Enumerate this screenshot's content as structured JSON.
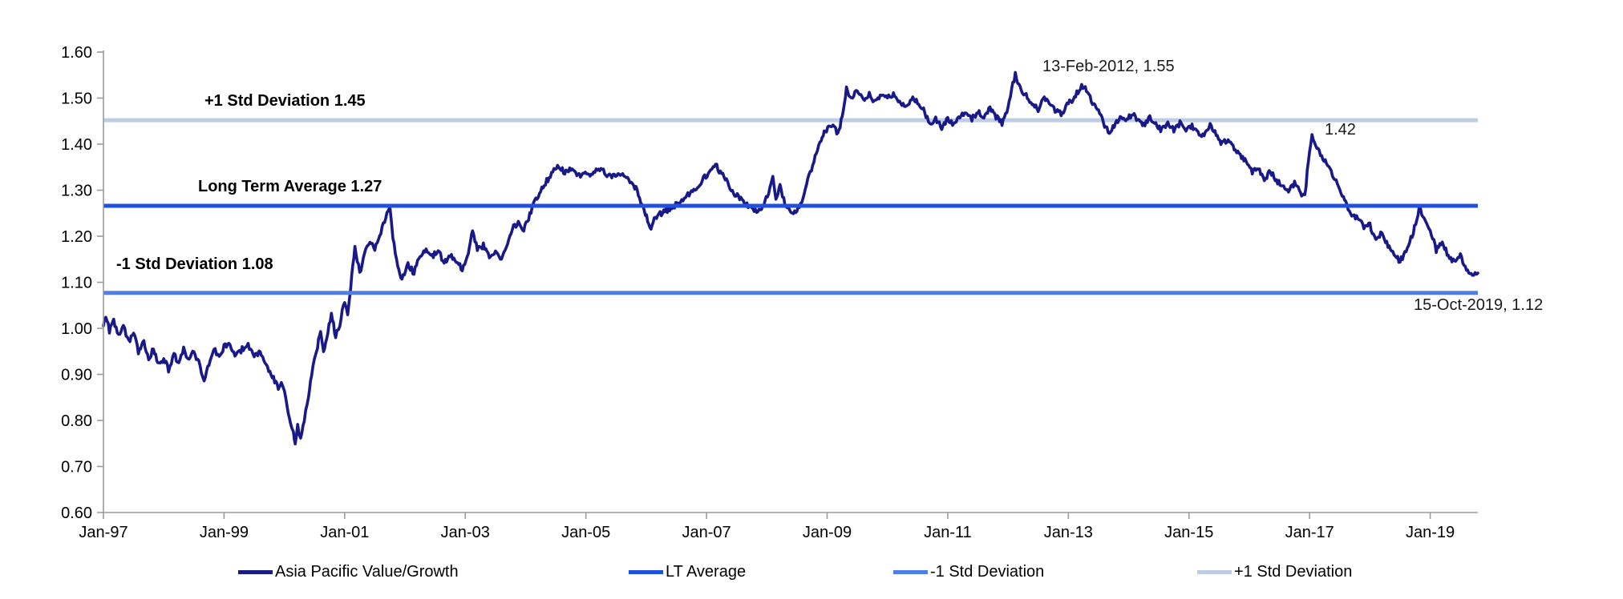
{
  "chart_data": {
    "type": "line",
    "title": "",
    "x_axis": {
      "tick_labels": [
        "Jan-97",
        "Jan-99",
        "Jan-01",
        "Jan-03",
        "Jan-05",
        "Jan-07",
        "Jan-09",
        "Jan-11",
        "Jan-13",
        "Jan-15",
        "Jan-17",
        "Jan-19"
      ],
      "tick_years": [
        0,
        2,
        4,
        6,
        8,
        10,
        12,
        14,
        16,
        18,
        20,
        22
      ],
      "range_years": [
        0,
        22.79
      ]
    },
    "y_axis": {
      "tick_labels": [
        "1.60",
        "1.50",
        "1.40",
        "1.30",
        "1.20",
        "1.10",
        "1.00",
        "0.90",
        "0.80",
        "0.70",
        "0.60"
      ],
      "min": 0.6,
      "max": 1.6,
      "step": 0.1
    },
    "series": [
      {
        "name": "Asia Pacific Value/Growth",
        "color": "#191987",
        "points": [
          [
            0,
            1.005
          ],
          [
            0.04,
            1.03
          ],
          [
            0.1,
            0.995
          ],
          [
            0.17,
            1.015
          ],
          [
            0.25,
            0.985
          ],
          [
            0.33,
            1.005
          ],
          [
            0.42,
            0.97
          ],
          [
            0.5,
            0.99
          ],
          [
            0.58,
            0.95
          ],
          [
            0.67,
            0.97
          ],
          [
            0.75,
            0.935
          ],
          [
            0.83,
            0.955
          ],
          [
            0.92,
            0.92
          ],
          [
            1,
            0.935
          ],
          [
            1.08,
            0.91
          ],
          [
            1.17,
            0.945
          ],
          [
            1.25,
            0.92
          ],
          [
            1.33,
            0.955
          ],
          [
            1.42,
            0.93
          ],
          [
            1.5,
            0.95
          ],
          [
            1.58,
            0.925
          ],
          [
            1.67,
            0.89
          ],
          [
            1.75,
            0.92
          ],
          [
            1.83,
            0.955
          ],
          [
            1.92,
            0.94
          ],
          [
            2,
            0.96
          ],
          [
            2.1,
            0.965
          ],
          [
            2.2,
            0.94
          ],
          [
            2.3,
            0.955
          ],
          [
            2.4,
            0.965
          ],
          [
            2.5,
            0.94
          ],
          [
            2.6,
            0.95
          ],
          [
            2.7,
            0.92
          ],
          [
            2.8,
            0.895
          ],
          [
            2.9,
            0.87
          ],
          [
            2.95,
            0.885
          ],
          [
            3,
            0.86
          ],
          [
            3.05,
            0.825
          ],
          [
            3.1,
            0.8
          ],
          [
            3.15,
            0.775
          ],
          [
            3.18,
            0.745
          ],
          [
            3.22,
            0.79
          ],
          [
            3.27,
            0.76
          ],
          [
            3.33,
            0.8
          ],
          [
            3.4,
            0.85
          ],
          [
            3.45,
            0.9
          ],
          [
            3.5,
            0.935
          ],
          [
            3.55,
            0.96
          ],
          [
            3.6,
            0.995
          ],
          [
            3.65,
            0.955
          ],
          [
            3.7,
            0.975
          ],
          [
            3.78,
            1.035
          ],
          [
            3.85,
            0.98
          ],
          [
            3.92,
            1.01
          ],
          [
            4,
            1.06
          ],
          [
            4.05,
            1.03
          ],
          [
            4.1,
            1.09
          ],
          [
            4.17,
            1.18
          ],
          [
            4.25,
            1.12
          ],
          [
            4.33,
            1.16
          ],
          [
            4.42,
            1.19
          ],
          [
            4.5,
            1.17
          ],
          [
            4.6,
            1.21
          ],
          [
            4.7,
            1.245
          ],
          [
            4.75,
            1.26
          ],
          [
            4.8,
            1.2
          ],
          [
            4.88,
            1.13
          ],
          [
            4.95,
            1.105
          ],
          [
            5.05,
            1.14
          ],
          [
            5.15,
            1.12
          ],
          [
            5.25,
            1.16
          ],
          [
            5.35,
            1.17
          ],
          [
            5.45,
            1.155
          ],
          [
            5.55,
            1.17
          ],
          [
            5.65,
            1.14
          ],
          [
            5.75,
            1.16
          ],
          [
            5.85,
            1.145
          ],
          [
            5.95,
            1.13
          ],
          [
            6.05,
            1.16
          ],
          [
            6.12,
            1.215
          ],
          [
            6.2,
            1.17
          ],
          [
            6.3,
            1.18
          ],
          [
            6.4,
            1.155
          ],
          [
            6.5,
            1.165
          ],
          [
            6.6,
            1.15
          ],
          [
            6.7,
            1.18
          ],
          [
            6.8,
            1.22
          ],
          [
            6.9,
            1.23
          ],
          [
            6.95,
            1.21
          ],
          [
            7.05,
            1.24
          ],
          [
            7.15,
            1.275
          ],
          [
            7.25,
            1.3
          ],
          [
            7.35,
            1.32
          ],
          [
            7.45,
            1.34
          ],
          [
            7.55,
            1.35
          ],
          [
            7.65,
            1.34
          ],
          [
            7.75,
            1.345
          ],
          [
            7.85,
            1.33
          ],
          [
            7.95,
            1.335
          ],
          [
            8.05,
            1.335
          ],
          [
            8.15,
            1.34
          ],
          [
            8.25,
            1.345
          ],
          [
            8.35,
            1.335
          ],
          [
            8.45,
            1.33
          ],
          [
            8.55,
            1.335
          ],
          [
            8.65,
            1.33
          ],
          [
            8.75,
            1.32
          ],
          [
            8.85,
            1.3
          ],
          [
            8.95,
            1.26
          ],
          [
            9.08,
            1.217
          ],
          [
            9.15,
            1.24
          ],
          [
            9.25,
            1.25
          ],
          [
            9.35,
            1.257
          ],
          [
            9.45,
            1.265
          ],
          [
            9.55,
            1.272
          ],
          [
            9.65,
            1.285
          ],
          [
            9.75,
            1.295
          ],
          [
            9.85,
            1.31
          ],
          [
            9.95,
            1.325
          ],
          [
            10.05,
            1.34
          ],
          [
            10.15,
            1.355
          ],
          [
            10.25,
            1.335
          ],
          [
            10.35,
            1.315
          ],
          [
            10.45,
            1.295
          ],
          [
            10.55,
            1.285
          ],
          [
            10.65,
            1.27
          ],
          [
            10.75,
            1.258
          ],
          [
            10.85,
            1.255
          ],
          [
            10.95,
            1.268
          ],
          [
            11.05,
            1.305
          ],
          [
            11.1,
            1.33
          ],
          [
            11.15,
            1.275
          ],
          [
            11.22,
            1.31
          ],
          [
            11.3,
            1.27
          ],
          [
            11.4,
            1.255
          ],
          [
            11.5,
            1.253
          ],
          [
            11.6,
            1.28
          ],
          [
            11.7,
            1.33
          ],
          [
            11.8,
            1.37
          ],
          [
            11.9,
            1.41
          ],
          [
            11.97,
            1.43
          ],
          [
            12.05,
            1.435
          ],
          [
            12.12,
            1.44
          ],
          [
            12.18,
            1.42
          ],
          [
            12.25,
            1.46
          ],
          [
            12.32,
            1.52
          ],
          [
            12.4,
            1.5
          ],
          [
            12.5,
            1.515
          ],
          [
            12.6,
            1.495
          ],
          [
            12.7,
            1.51
          ],
          [
            12.8,
            1.49
          ],
          [
            12.9,
            1.505
          ],
          [
            13,
            1.5
          ],
          [
            13.1,
            1.51
          ],
          [
            13.2,
            1.49
          ],
          [
            13.3,
            1.48
          ],
          [
            13.4,
            1.5
          ],
          [
            13.5,
            1.49
          ],
          [
            13.6,
            1.475
          ],
          [
            13.7,
            1.445
          ],
          [
            13.8,
            1.455
          ],
          [
            13.9,
            1.435
          ],
          [
            14,
            1.455
          ],
          [
            14.1,
            1.44
          ],
          [
            14.2,
            1.46
          ],
          [
            14.3,
            1.47
          ],
          [
            14.4,
            1.455
          ],
          [
            14.5,
            1.47
          ],
          [
            14.6,
            1.455
          ],
          [
            14.7,
            1.48
          ],
          [
            14.8,
            1.46
          ],
          [
            14.9,
            1.445
          ],
          [
            15,
            1.48
          ],
          [
            15.08,
            1.53
          ],
          [
            15.12,
            1.55
          ],
          [
            15.2,
            1.52
          ],
          [
            15.3,
            1.505
          ],
          [
            15.4,
            1.49
          ],
          [
            15.5,
            1.475
          ],
          [
            15.6,
            1.5
          ],
          [
            15.7,
            1.49
          ],
          [
            15.8,
            1.47
          ],
          [
            15.9,
            1.465
          ],
          [
            16,
            1.49
          ],
          [
            16.1,
            1.5
          ],
          [
            16.2,
            1.525
          ],
          [
            16.3,
            1.52
          ],
          [
            16.4,
            1.49
          ],
          [
            16.5,
            1.47
          ],
          [
            16.6,
            1.44
          ],
          [
            16.68,
            1.425
          ],
          [
            16.78,
            1.445
          ],
          [
            16.88,
            1.46
          ],
          [
            16.95,
            1.45
          ],
          [
            17.05,
            1.465
          ],
          [
            17.15,
            1.455
          ],
          [
            17.25,
            1.44
          ],
          [
            17.35,
            1.46
          ],
          [
            17.45,
            1.445
          ],
          [
            17.55,
            1.43
          ],
          [
            17.65,
            1.445
          ],
          [
            17.75,
            1.43
          ],
          [
            17.85,
            1.445
          ],
          [
            17.95,
            1.43
          ],
          [
            18.05,
            1.44
          ],
          [
            18.15,
            1.425
          ],
          [
            18.25,
            1.42
          ],
          [
            18.35,
            1.44
          ],
          [
            18.45,
            1.42
          ],
          [
            18.55,
            1.4
          ],
          [
            18.65,
            1.41
          ],
          [
            18.75,
            1.39
          ],
          [
            18.85,
            1.375
          ],
          [
            18.95,
            1.36
          ],
          [
            19.05,
            1.34
          ],
          [
            19.15,
            1.35
          ],
          [
            19.25,
            1.325
          ],
          [
            19.35,
            1.34
          ],
          [
            19.45,
            1.32
          ],
          [
            19.55,
            1.31
          ],
          [
            19.65,
            1.3
          ],
          [
            19.75,
            1.315
          ],
          [
            19.85,
            1.295
          ],
          [
            19.92,
            1.285
          ],
          [
            20,
            1.39
          ],
          [
            20.04,
            1.42
          ],
          [
            20.1,
            1.4
          ],
          [
            20.16,
            1.385
          ],
          [
            20.22,
            1.37
          ],
          [
            20.3,
            1.355
          ],
          [
            20.4,
            1.33
          ],
          [
            20.5,
            1.3
          ],
          [
            20.6,
            1.27
          ],
          [
            20.7,
            1.245
          ],
          [
            20.8,
            1.24
          ],
          [
            20.9,
            1.22
          ],
          [
            21,
            1.225
          ],
          [
            21.1,
            1.19
          ],
          [
            21.2,
            1.21
          ],
          [
            21.3,
            1.18
          ],
          [
            21.4,
            1.165
          ],
          [
            21.5,
            1.145
          ],
          [
            21.6,
            1.17
          ],
          [
            21.7,
            1.2
          ],
          [
            21.82,
            1.26
          ],
          [
            21.9,
            1.235
          ],
          [
            22,
            1.215
          ],
          [
            22.1,
            1.17
          ],
          [
            22.2,
            1.19
          ],
          [
            22.3,
            1.155
          ],
          [
            22.4,
            1.145
          ],
          [
            22.5,
            1.16
          ],
          [
            22.6,
            1.13
          ],
          [
            22.7,
            1.115
          ],
          [
            22.79,
            1.12
          ]
        ]
      }
    ],
    "reference_lines": [
      {
        "name": "LT Average",
        "value": 1.266,
        "annotation": "Long Term Average 1.27",
        "color": "#2050E0"
      },
      {
        "name": "-1 Std Deviation",
        "value": 1.077,
        "annotation": "-1 Std Deviation 1.08",
        "color": "#4E7FE8"
      },
      {
        "name": "+1 Std Deviation",
        "value": 1.452,
        "annotation": "+1 Std Deviation 1.45",
        "color": "#BECCE4"
      }
    ],
    "point_labels": [
      {
        "text": "13-Feb-2012, 1.55",
        "x_year": 15.12,
        "value": 1.55
      },
      {
        "text": "1.42",
        "x_year": 20.04,
        "value": 1.42
      },
      {
        "text": "15-Oct-2019, 1.12",
        "x_year": 22.79,
        "value": 1.12
      }
    ],
    "legend": [
      {
        "label": "Asia Pacific Value/Growth",
        "color": "#191987"
      },
      {
        "label": "LT Average",
        "color": "#2050E0"
      },
      {
        "label": "-1 Std Deviation",
        "color": "#4E7FE8"
      },
      {
        "label": "+1 Std Deviation",
        "color": "#BECCE4"
      }
    ],
    "layout": {
      "legend_position": "bottom",
      "grid": false,
      "axis_color": "#9B9B9B",
      "noise_amplitude_visual": 0.006
    }
  }
}
